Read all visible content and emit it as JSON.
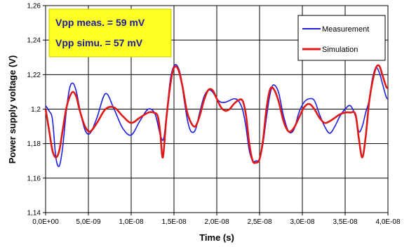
{
  "chart_data": {
    "type": "line",
    "title": "",
    "xlabel": "Time (s)",
    "ylabel": "Power supply voltage (V)",
    "xlim": [
      0,
      4e-08
    ],
    "ylim": [
      1.14,
      1.26
    ],
    "x_tick_labels": [
      "0,0E+00",
      "5,0E-09",
      "1,0E-08",
      "1,5E-08",
      "2,0E-08",
      "2,5E-08",
      "3,0E-08",
      "3,5E-08",
      "4,0E-08"
    ],
    "y_tick_labels": [
      "1,14",
      "1,16",
      "1,18",
      "1,2",
      "1,22",
      "1,24",
      "1,26"
    ],
    "grid": true,
    "legend_position": "top-right",
    "annotations": [
      "Vpp meas. = 59 mV",
      "Vpp simu. = 57 mV"
    ],
    "series": [
      {
        "name": "Measurement",
        "color": "#1f1fe0",
        "x": [
          0,
          4e-10,
          8e-10,
          1.2e-09,
          1.6e-09,
          2e-09,
          2.4e-09,
          2.8e-09,
          3.2e-09,
          3.6e-09,
          4e-09,
          4.6e-09,
          5.2e-09,
          6e-09,
          7e-09,
          8e-09,
          9e-09,
          1e-08,
          1.1e-08,
          1.2e-08,
          1.28e-08,
          1.34e-08,
          1.38e-08,
          1.42e-08,
          1.46e-08,
          1.5e-08,
          1.54e-08,
          1.58e-08,
          1.62e-08,
          1.66e-08,
          1.7e-08,
          1.75e-08,
          1.8e-08,
          1.85e-08,
          1.9e-08,
          1.95e-08,
          2e-08,
          2.05e-08,
          2.1e-08,
          2.15e-08,
          2.2e-08,
          2.25e-08,
          2.3e-08,
          2.34e-08,
          2.38e-08,
          2.42e-08,
          2.46e-08,
          2.5e-08,
          2.54e-08,
          2.58e-08,
          2.62e-08,
          2.66e-08,
          2.72e-08,
          2.78e-08,
          2.84e-08,
          2.9e-08,
          2.96e-08,
          3.02e-08,
          3.08e-08,
          3.14e-08,
          3.2e-08,
          3.26e-08,
          3.32e-08,
          3.38e-08,
          3.44e-08,
          3.5e-08,
          3.56e-08,
          3.62e-08,
          3.66e-08,
          3.7e-08,
          3.74e-08,
          3.78e-08,
          3.82e-08,
          3.86e-08,
          3.9e-08,
          3.94e-08,
          3.98e-08,
          4e-08
        ],
        "y": [
          1.202,
          1.199,
          1.194,
          1.172,
          1.167,
          1.178,
          1.198,
          1.212,
          1.215,
          1.21,
          1.2,
          1.188,
          1.186,
          1.195,
          1.209,
          1.2,
          1.189,
          1.185,
          1.193,
          1.2,
          1.197,
          1.185,
          1.183,
          1.2,
          1.218,
          1.225,
          1.225,
          1.219,
          1.205,
          1.193,
          1.187,
          1.188,
          1.198,
          1.207,
          1.211,
          1.21,
          1.206,
          1.204,
          1.204,
          1.205,
          1.206,
          1.205,
          1.2,
          1.19,
          1.176,
          1.17,
          1.17,
          1.171,
          1.18,
          1.195,
          1.208,
          1.214,
          1.21,
          1.196,
          1.187,
          1.188,
          1.198,
          1.204,
          1.206,
          1.205,
          1.197,
          1.19,
          1.186,
          1.19,
          1.196,
          1.2,
          1.202,
          1.196,
          1.187,
          1.19,
          1.198,
          1.205,
          1.218,
          1.224,
          1.221,
          1.214,
          1.207,
          1.206
        ]
      },
      {
        "name": "Simulation",
        "color": "#e01818",
        "x": [
          0,
          4e-10,
          8e-10,
          1.2e-09,
          1.6e-09,
          2e-09,
          2.4e-09,
          2.8e-09,
          3.2e-09,
          3.6e-09,
          4e-09,
          4.6e-09,
          5.2e-09,
          6e-09,
          7e-09,
          8e-09,
          9e-09,
          1e-08,
          1.1e-08,
          1.2e-08,
          1.26e-08,
          1.31e-08,
          1.34e-08,
          1.37e-08,
          1.41e-08,
          1.46e-08,
          1.5e-08,
          1.55e-08,
          1.6e-08,
          1.65e-08,
          1.7e-08,
          1.75e-08,
          1.8e-08,
          1.85e-08,
          1.9e-08,
          1.95e-08,
          2e-08,
          2.05e-08,
          2.1e-08,
          2.15e-08,
          2.2e-08,
          2.25e-08,
          2.3e-08,
          2.34e-08,
          2.38e-08,
          2.42e-08,
          2.46e-08,
          2.5e-08,
          2.54e-08,
          2.58e-08,
          2.62e-08,
          2.66e-08,
          2.72e-08,
          2.78e-08,
          2.84e-08,
          2.9e-08,
          2.96e-08,
          3.02e-08,
          3.08e-08,
          3.14e-08,
          3.2e-08,
          3.26e-08,
          3.32e-08,
          3.38e-08,
          3.44e-08,
          3.5e-08,
          3.56e-08,
          3.62e-08,
          3.66e-08,
          3.7e-08,
          3.74e-08,
          3.78e-08,
          3.82e-08,
          3.86e-08,
          3.9e-08,
          3.94e-08,
          3.98e-08,
          4e-08
        ],
        "y": [
          1.2,
          1.188,
          1.176,
          1.172,
          1.176,
          1.188,
          1.2,
          1.207,
          1.21,
          1.207,
          1.199,
          1.19,
          1.187,
          1.192,
          1.2,
          1.201,
          1.196,
          1.192,
          1.195,
          1.198,
          1.198,
          1.196,
          1.186,
          1.172,
          1.194,
          1.215,
          1.224,
          1.223,
          1.213,
          1.199,
          1.192,
          1.19,
          1.196,
          1.205,
          1.211,
          1.211,
          1.206,
          1.201,
          1.199,
          1.2,
          1.203,
          1.205,
          1.205,
          1.197,
          1.18,
          1.17,
          1.169,
          1.171,
          1.182,
          1.2,
          1.211,
          1.212,
          1.205,
          1.193,
          1.187,
          1.189,
          1.195,
          1.201,
          1.203,
          1.2,
          1.195,
          1.192,
          1.193,
          1.195,
          1.197,
          1.198,
          1.198,
          1.197,
          1.183,
          1.172,
          1.184,
          1.204,
          1.216,
          1.224,
          1.225,
          1.219,
          1.213,
          1.212
        ]
      }
    ]
  }
}
